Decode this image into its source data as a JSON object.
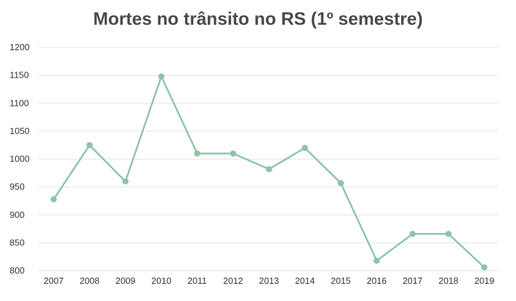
{
  "chart_data": {
    "type": "line",
    "title": "Mortes no trânsito no RS (1º semestre)",
    "xlabel": "",
    "ylabel": "",
    "ylim": [
      800,
      1200
    ],
    "yticks": [
      800,
      850,
      900,
      950,
      1000,
      1050,
      1100,
      1150,
      1200
    ],
    "categories": [
      "2007",
      "2008",
      "2009",
      "2010",
      "2011",
      "2012",
      "2013",
      "2014",
      "2015",
      "2016",
      "2017",
      "2018",
      "2019"
    ],
    "series": [
      {
        "values": [
          928,
          1025,
          960,
          1148,
          1010,
          1010,
          982,
          1020,
          957,
          818,
          866,
          866,
          806
        ],
        "color": "#8cc4a6"
      }
    ],
    "grid": true,
    "colors": {
      "grid": "#e3e3e3",
      "title": "#4a4a4a",
      "tick": "#333333"
    }
  }
}
